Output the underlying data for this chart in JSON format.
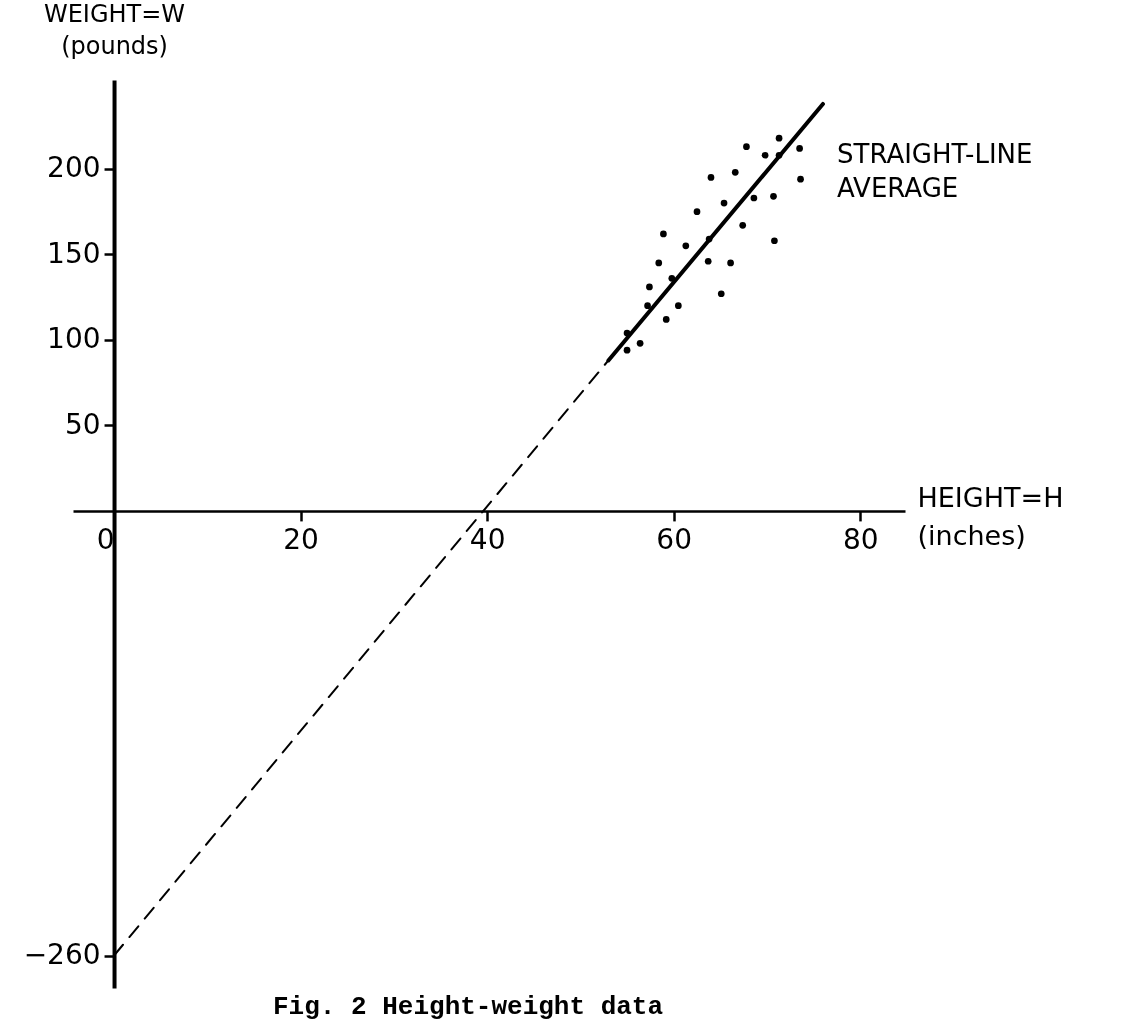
{
  "chart_data": {
    "type": "scatter",
    "xlabel": "HEIGHT=H\n(inches)",
    "ylabel": "WEIGHT=W\n(pounds)",
    "xlim": [
      -4.4,
      84.8
    ],
    "ylim": [
      -279,
      252
    ],
    "xticks": [
      0,
      20,
      40,
      60,
      80
    ],
    "yticks": [
      -260,
      50,
      100,
      150,
      200
    ],
    "series": [
      {
        "type": "scatter",
        "color": "#000000",
        "marker": "circle",
        "x": [
          67.8,
          71.3,
          69.8,
          73.5,
          71.3,
          66.6,
          64.0,
          73.6,
          68.6,
          70.7,
          65.4,
          62.5,
          67.4,
          58.9,
          63.8,
          70.8,
          61.3,
          58.4,
          63.7,
          66.1,
          59.8,
          57.4,
          65.1,
          57.2,
          60.5,
          59.2,
          55.0,
          56.4,
          55.0
        ],
        "values": [
          213,
          218,
          208,
          212,
          208,
          198,
          195,
          194,
          183,
          184,
          180,
          175,
          167,
          162,
          159,
          158,
          155,
          145,
          146,
          145,
          136,
          131,
          127,
          120,
          120,
          112,
          104,
          98,
          94
        ]
      },
      {
        "type": "line",
        "color": "#000000",
        "line_style": "dashed",
        "x": [
          0,
          53
        ],
        "values": [
          -260,
          88
        ]
      },
      {
        "type": "line",
        "color": "#000000",
        "line_style": "solid",
        "x": [
          53,
          76
        ],
        "values": [
          88,
          238
        ]
      }
    ],
    "annotations": [
      "STRAIGHT-LINE\nAVERAGE",
      "Fig. 2 Height-weight data"
    ]
  }
}
